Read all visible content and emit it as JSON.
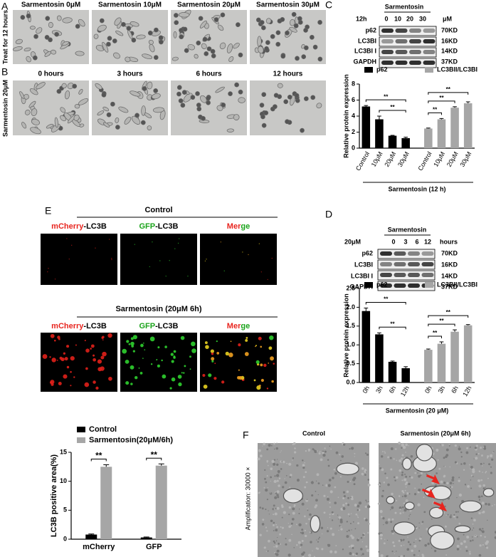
{
  "panel_A": {
    "letter": "A",
    "side_label": "Treat for 12 hours",
    "image_labels": [
      "Sarmentosin 0μM",
      "Sarmentosin 10μM",
      "Sarmentosin 20μM",
      "Sarmentosin 30μM"
    ]
  },
  "panel_B": {
    "letter": "B",
    "side_label": "Sarmentosin 20μM",
    "image_labels": [
      "0 hours",
      "3 hours",
      "6 hours",
      "12 hours"
    ]
  },
  "panel_C_blot": {
    "letter": "C",
    "treatment": "Sarmentosin",
    "time": "12h",
    "doses": [
      "0",
      "10",
      "20",
      "30"
    ],
    "unit": "μM",
    "proteins": [
      "p62",
      "LC3BI",
      "LC3BI I",
      "GAPDH"
    ],
    "sizes": [
      "70KD",
      "16KD",
      "14KD",
      "37KD"
    ]
  },
  "panel_D_blot": {
    "letter": "D",
    "treatment": "Sarmentosin",
    "dose": "20μM",
    "times": [
      "0",
      "3",
      "6",
      "12"
    ],
    "unit": "hours",
    "proteins": [
      "p62",
      "LC3BI",
      "LC3BI I",
      "GAPDH"
    ],
    "sizes": [
      "70KD",
      "16KD",
      "14KD",
      "37KD"
    ]
  },
  "panel_E_images": {
    "letter": "E",
    "groups": [
      {
        "title": "Control",
        "channels": [
          [
            {
              "text": "mCherry",
              "color": "#e8251f"
            },
            {
              "text": "-LC3B",
              "color": "#000000"
            }
          ],
          [
            {
              "text": "GFP",
              "color": "#1aa31a"
            },
            {
              "text": "-LC3B",
              "color": "#000000"
            }
          ],
          [
            {
              "text": "Mer",
              "color": "#e8251f"
            },
            {
              "text": "ge",
              "color": "#1aa31a"
            }
          ]
        ]
      },
      {
        "title": "Sarmentosin (20μM 6h)",
        "channels": [
          [
            {
              "text": "mCherry",
              "color": "#e8251f"
            },
            {
              "text": "-LC3B",
              "color": "#000000"
            }
          ],
          [
            {
              "text": "GFP",
              "color": "#1aa31a"
            },
            {
              "text": "-LC3B",
              "color": "#000000"
            }
          ],
          [
            {
              "text": "Mer",
              "color": "#e8251f"
            },
            {
              "text": "ge",
              "color": "#1aa31a"
            }
          ]
        ]
      }
    ]
  },
  "panel_F": {
    "letter": "F",
    "side_label": "Amplification: 30000 ×",
    "image_labels": [
      "Control",
      "Sarmentosin (20μM 6h)"
    ]
  },
  "chart_data": [
    {
      "type": "bar",
      "y_label": "Relative protein expression",
      "x_label": "Sarmentosin (12 h)",
      "legend": "top",
      "categories": [
        "Control",
        "10μM",
        "20μM",
        "30μM",
        "Control",
        "10μM",
        "20μM",
        "30μM"
      ],
      "series": [
        {
          "name": "p62",
          "color": "#000000",
          "values": [
            5.2,
            3.6,
            1.55,
            1.25,
            null,
            null,
            null,
            null
          ],
          "errors": [
            0.12,
            0.4,
            0.05,
            0.12,
            null,
            null,
            null,
            null
          ]
        },
        {
          "name": "LC3BII/LC3BI",
          "color": "#a6a6a6",
          "values": [
            null,
            null,
            null,
            null,
            2.45,
            3.6,
            5.05,
            5.6
          ],
          "errors": [
            null,
            null,
            null,
            null,
            0.06,
            0.1,
            0.12,
            0.18
          ]
        }
      ],
      "ylim": [
        0,
        8
      ],
      "yticks": [
        0,
        2,
        4,
        6,
        8
      ],
      "significance": [
        {
          "between": [
            1,
            3
          ],
          "label": "**"
        },
        {
          "between": [
            0,
            3
          ],
          "label": "**"
        },
        {
          "between": [
            4,
            5
          ],
          "label": "**"
        },
        {
          "between": [
            4,
            6
          ],
          "label": "**"
        },
        {
          "between": [
            4,
            7
          ],
          "label": "**"
        }
      ]
    },
    {
      "type": "bar",
      "y_label": "Relative protein expression",
      "x_label": "Sarmentosin (20 μM)",
      "legend": "top",
      "categories": [
        "0h",
        "3h",
        "6h",
        "12h",
        "0h",
        "3h",
        "6h",
        "12h"
      ],
      "series": [
        {
          "name": "p62",
          "color": "#000000",
          "values": [
            1.9,
            1.28,
            0.55,
            0.38,
            null,
            null,
            null,
            null
          ],
          "errors": [
            0.08,
            0.04,
            0.02,
            0.04,
            null,
            null,
            null,
            null
          ]
        },
        {
          "name": "LC3BII/LC3BI",
          "color": "#a6a6a6",
          "values": [
            null,
            null,
            null,
            null,
            0.87,
            1.03,
            1.35,
            1.52
          ],
          "errors": [
            null,
            null,
            null,
            null,
            0.02,
            0.05,
            0.05,
            0.02
          ]
        }
      ],
      "ylim": [
        0,
        2.5
      ],
      "yticks": [
        {
          "value": 0,
          "label": "0.0"
        },
        0.5,
        {
          "value": 1,
          "label": "1.0"
        },
        1.5,
        {
          "value": 2,
          "label": "2.0"
        },
        2.5
      ],
      "significance": [
        {
          "between": [
            1,
            3
          ],
          "label": "**"
        },
        {
          "between": [
            0,
            3
          ],
          "label": "**"
        },
        {
          "between": [
            4,
            5
          ],
          "label": "**"
        },
        {
          "between": [
            4,
            6
          ],
          "label": "**"
        },
        {
          "between": [
            4,
            7
          ],
          "label": "**"
        }
      ]
    },
    {
      "type": "bar",
      "y_label": "LC3B positive area(%)",
      "legend": "top",
      "categories": [
        "mCherry",
        "GFP"
      ],
      "series": [
        {
          "name": "Control",
          "color": "#000000",
          "values": [
            0.8,
            0.3
          ],
          "errors": [
            0.1,
            0.08
          ]
        },
        {
          "name": "Sarmentosin(20μM/6h)",
          "color": "#a6a6a6",
          "values": [
            12.5,
            12.7
          ],
          "errors": [
            0.35,
            0.3
          ]
        }
      ],
      "ylim": [
        0,
        15
      ],
      "yticks": [
        0,
        5,
        10,
        15
      ],
      "significance": [
        {
          "category": 0,
          "label": "**"
        },
        {
          "category": 1,
          "label": "**"
        }
      ]
    }
  ]
}
